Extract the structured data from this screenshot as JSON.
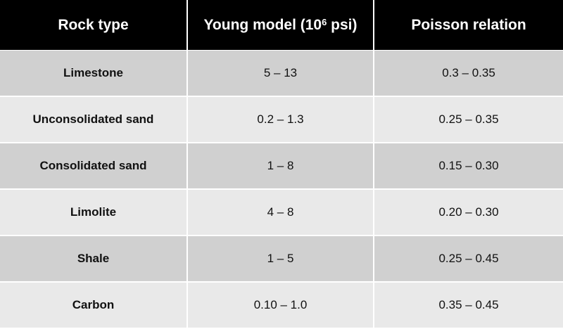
{
  "table": {
    "header": [
      {
        "text": "Rock type"
      },
      {
        "text": "Young model (10",
        "sup": "6",
        "after": " psi)"
      },
      {
        "text": "Poisson relation"
      }
    ],
    "rows": [
      [
        "Limestone",
        "5 – 13",
        "0.3 – 0.35"
      ],
      [
        "Unconsolidated sand",
        "0.2 – 1.3",
        "0.25 – 0.35"
      ],
      [
        "Consolidated sand",
        "1 – 8",
        "0.15 – 0.30"
      ],
      [
        "Limolite",
        "4 – 8",
        "0.20 – 0.30"
      ],
      [
        "Shale",
        "1 – 5",
        "0.25 – 0.45"
      ],
      [
        "Carbon",
        "0.10 – 1.0",
        "0.35 – 0.45"
      ]
    ]
  }
}
